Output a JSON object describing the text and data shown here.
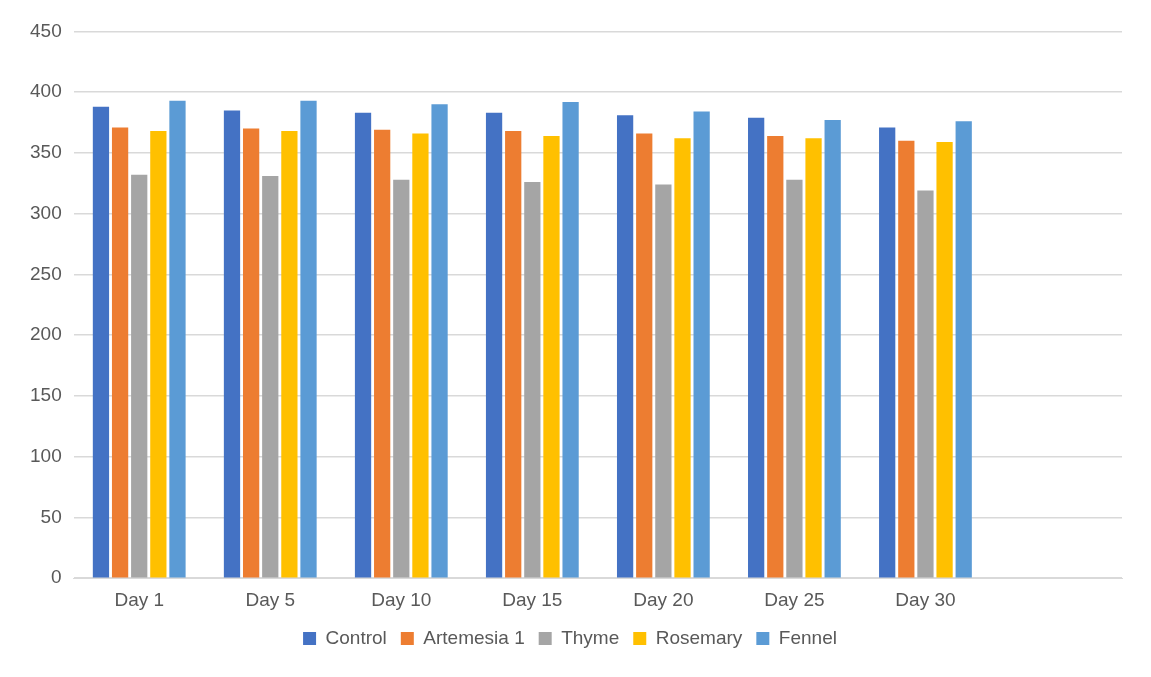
{
  "chart_data": {
    "type": "bar",
    "categories": [
      "Day 1",
      "Day 5",
      "Day 10",
      "Day 15",
      "Day 20",
      "Day 25",
      "Day 30",
      null
    ],
    "series": [
      {
        "name": "Control",
        "color": "#4472c4",
        "values": [
          388,
          385,
          383,
          383,
          381,
          379,
          371,
          null
        ]
      },
      {
        "name": "Artemesia 1",
        "color": "#ed7d31",
        "values": [
          371,
          370,
          369,
          368,
          366,
          364,
          360,
          null
        ]
      },
      {
        "name": "Thyme",
        "color": "#a5a5a5",
        "values": [
          332,
          331,
          328,
          326,
          324,
          328,
          319,
          null
        ]
      },
      {
        "name": "Rosemary",
        "color": "#ffc000",
        "values": [
          368,
          368,
          366,
          364,
          362,
          362,
          359,
          null
        ]
      },
      {
        "name": "Fennel",
        "color": "#5b9bd5",
        "values": [
          393,
          393,
          390,
          392,
          384,
          377,
          376,
          null
        ]
      }
    ],
    "ylim": [
      0,
      450
    ],
    "yticks": [
      0,
      50,
      100,
      150,
      200,
      250,
      300,
      350,
      400,
      450
    ],
    "grid": "y",
    "legend": "bottom"
  }
}
